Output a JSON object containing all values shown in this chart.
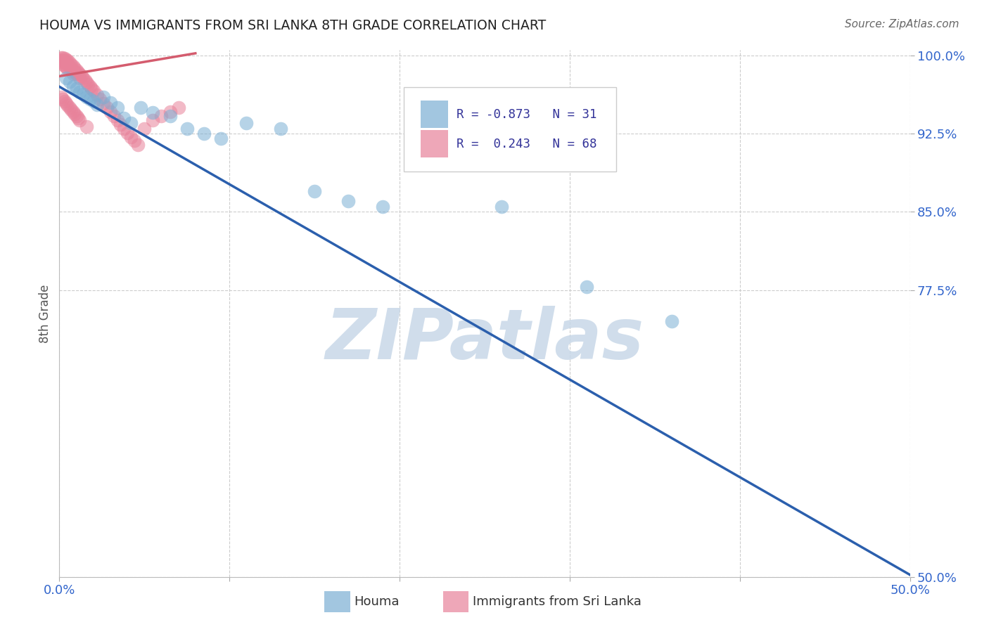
{
  "title": "HOUMA VS IMMIGRANTS FROM SRI LANKA 8TH GRADE CORRELATION CHART",
  "source": "Source: ZipAtlas.com",
  "ylabel": "8th Grade",
  "xlim": [
    0.0,
    0.5
  ],
  "ylim": [
    0.5,
    1.005
  ],
  "xticks": [
    0.0,
    0.1,
    0.2,
    0.3,
    0.4,
    0.5
  ],
  "xtick_labels": [
    "0.0%",
    "",
    "",
    "",
    "",
    "50.0%"
  ],
  "yticks": [
    0.5,
    0.775,
    0.85,
    0.925,
    1.0
  ],
  "ytick_labels": [
    "50.0%",
    "77.5%",
    "85.0%",
    "92.5%",
    "100.0%"
  ],
  "r_blue": -0.873,
  "n_blue": 31,
  "r_pink": 0.243,
  "n_pink": 68,
  "blue_color": "#7bafd4",
  "pink_color": "#e8829a",
  "blue_line_color": "#2b5fad",
  "pink_line_color": "#d45c6e",
  "watermark": "ZIPatlas",
  "watermark_color": "#c8d8e8",
  "blue_line_x0": 0.0,
  "blue_line_y0": 0.97,
  "blue_line_x1": 0.5,
  "blue_line_y1": 0.502,
  "pink_line_x0": 0.0,
  "pink_line_y0": 0.98,
  "pink_line_x1": 0.08,
  "pink_line_y1": 1.002,
  "blue_scatter_x": [
    0.004,
    0.006,
    0.008,
    0.01,
    0.012,
    0.014,
    0.016,
    0.018,
    0.02,
    0.022,
    0.026,
    0.03,
    0.034,
    0.038,
    0.042,
    0.048,
    0.055,
    0.065,
    0.075,
    0.085,
    0.095,
    0.11,
    0.13,
    0.15,
    0.17,
    0.19,
    0.21,
    0.23,
    0.26,
    0.31,
    0.36
  ],
  "blue_scatter_y": [
    0.978,
    0.975,
    0.97,
    0.968,
    0.965,
    0.963,
    0.96,
    0.958,
    0.956,
    0.953,
    0.96,
    0.955,
    0.95,
    0.94,
    0.935,
    0.95,
    0.945,
    0.942,
    0.93,
    0.925,
    0.92,
    0.935,
    0.93,
    0.87,
    0.86,
    0.855,
    0.92,
    0.915,
    0.855,
    0.778,
    0.745
  ],
  "pink_scatter_x": [
    0.001,
    0.001,
    0.001,
    0.002,
    0.002,
    0.002,
    0.003,
    0.003,
    0.003,
    0.004,
    0.004,
    0.004,
    0.005,
    0.005,
    0.005,
    0.006,
    0.006,
    0.007,
    0.007,
    0.008,
    0.008,
    0.008,
    0.009,
    0.009,
    0.01,
    0.01,
    0.011,
    0.012,
    0.012,
    0.013,
    0.014,
    0.015,
    0.016,
    0.017,
    0.018,
    0.019,
    0.02,
    0.022,
    0.024,
    0.026,
    0.028,
    0.03,
    0.032,
    0.034,
    0.036,
    0.038,
    0.04,
    0.042,
    0.044,
    0.046,
    0.05,
    0.055,
    0.06,
    0.065,
    0.07,
    0.001,
    0.002,
    0.003,
    0.004,
    0.005,
    0.006,
    0.007,
    0.008,
    0.009,
    0.01,
    0.011,
    0.012,
    0.016
  ],
  "pink_scatter_y": [
    0.998,
    0.996,
    0.994,
    0.998,
    0.995,
    0.992,
    0.997,
    0.994,
    0.99,
    0.996,
    0.993,
    0.989,
    0.995,
    0.991,
    0.987,
    0.993,
    0.989,
    0.991,
    0.987,
    0.99,
    0.986,
    0.982,
    0.988,
    0.984,
    0.986,
    0.982,
    0.984,
    0.982,
    0.978,
    0.98,
    0.978,
    0.976,
    0.974,
    0.972,
    0.97,
    0.968,
    0.966,
    0.962,
    0.958,
    0.954,
    0.95,
    0.946,
    0.942,
    0.938,
    0.934,
    0.93,
    0.926,
    0.922,
    0.918,
    0.914,
    0.93,
    0.938,
    0.942,
    0.946,
    0.95,
    0.96,
    0.958,
    0.956,
    0.954,
    0.952,
    0.95,
    0.948,
    0.946,
    0.944,
    0.942,
    0.94,
    0.938,
    0.932
  ]
}
